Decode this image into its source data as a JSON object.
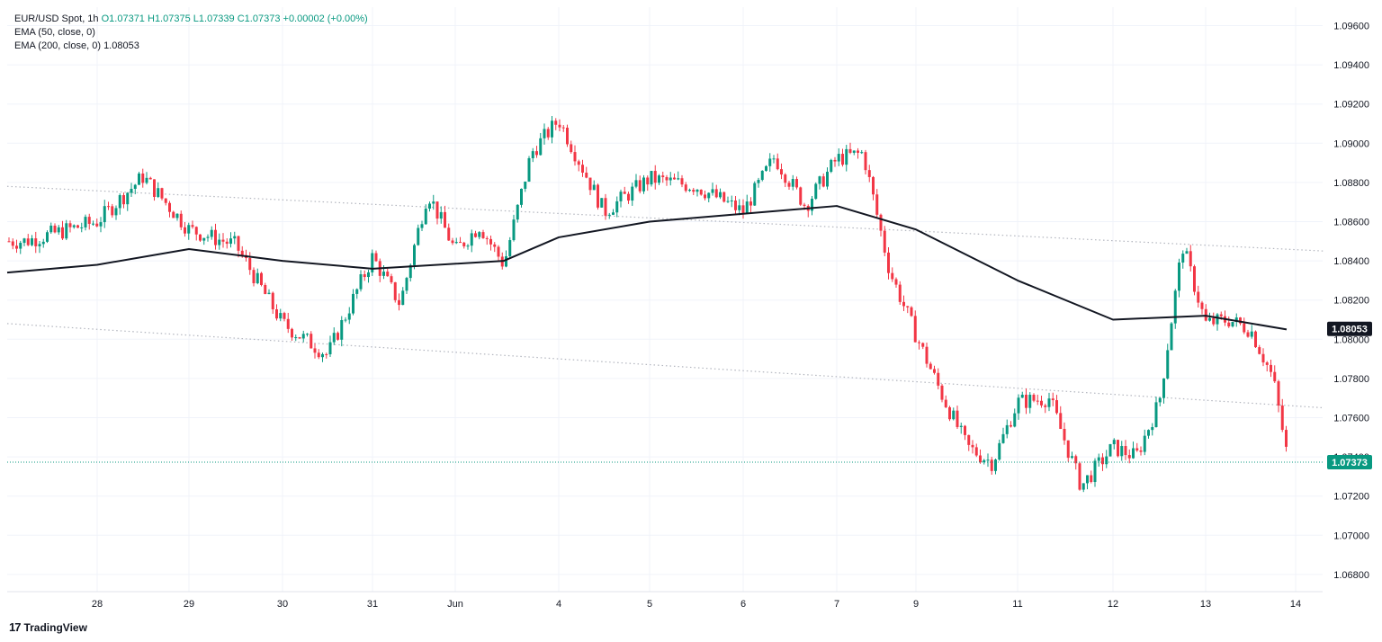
{
  "legend": {
    "symbol": "EUR/USD Spot, 1h",
    "open": "O1.07371",
    "high": "H1.07375",
    "low": "L1.07339",
    "close": "C1.07373",
    "change": "+0.00002 (+0.00%)",
    "ema50": "EMA (50, close, 0)",
    "ema200": "EMA (200, close, 0)",
    "ema200_value": "1.08053"
  },
  "branding": {
    "logo_text": "TradingView",
    "logo_mark": "17"
  },
  "colors": {
    "up": "#089981",
    "down": "#f23645",
    "ema": "#131722",
    "grid": "#f0f3fa",
    "trend": "#b2b5be"
  },
  "chart_data": {
    "type": "candlestick",
    "title": "EUR/USD Spot, 1h",
    "x_tick_labels": [
      "28",
      "29",
      "30",
      "31",
      "Jun",
      "4",
      "5",
      "6",
      "7",
      "9",
      "11",
      "12",
      "13",
      "14"
    ],
    "y_tick_labels": [
      "1.09600",
      "1.09400",
      "1.09200",
      "1.09000",
      "1.08800",
      "1.08600",
      "1.08400",
      "1.08200",
      "1.08000",
      "1.07800",
      "1.07600",
      "1.07400",
      "1.07200",
      "1.07000",
      "1.06800"
    ],
    "ylim": [
      1.067,
      1.097
    ],
    "grid": true,
    "last_price": "1.07373",
    "ema200_last": "1.08053",
    "price_path": [
      {
        "t": "27 May",
        "price": 1.085
      },
      {
        "t": "28 May",
        "price": 1.086
      },
      {
        "t": "28 May",
        "price": 1.0883
      },
      {
        "t": "29 May",
        "price": 1.0856
      },
      {
        "t": "29 May",
        "price": 1.0848
      },
      {
        "t": "30 May",
        "price": 1.0808
      },
      {
        "t": "30 May",
        "price": 1.0792
      },
      {
        "t": "31 May",
        "price": 1.0842
      },
      {
        "t": "31 May",
        "price": 1.0818
      },
      {
        "t": "31 May",
        "price": 1.0875
      },
      {
        "t": "Jun",
        "price": 1.0845
      },
      {
        "t": "Jun",
        "price": 1.0858
      },
      {
        "t": "3 Jun",
        "price": 1.0838
      },
      {
        "t": "3 Jun",
        "price": 1.0895
      },
      {
        "t": "4 Jun",
        "price": 1.0912
      },
      {
        "t": "4 Jun",
        "price": 1.0865
      },
      {
        "t": "5 Jun",
        "price": 1.0882
      },
      {
        "t": "5 Jun",
        "price": 1.0878
      },
      {
        "t": "6 Jun",
        "price": 1.0865
      },
      {
        "t": "6 Jun",
        "price": 1.0893
      },
      {
        "t": "6 Jun",
        "price": 1.0868
      },
      {
        "t": "7 Jun",
        "price": 1.0892
      },
      {
        "t": "7 Jun",
        "price": 1.0895
      },
      {
        "t": "7 Jun",
        "price": 1.0835
      },
      {
        "t": "9 Jun",
        "price": 1.0802
      },
      {
        "t": "9 Jun",
        "price": 1.0772
      },
      {
        "t": "10 Jun",
        "price": 1.0745
      },
      {
        "t": "10 Jun",
        "price": 1.0737
      },
      {
        "t": "11 Jun",
        "price": 1.0768
      },
      {
        "t": "11 Jun",
        "price": 1.077
      },
      {
        "t": "11 Jun",
        "price": 1.0725
      },
      {
        "t": "12 Jun",
        "price": 1.0745
      },
      {
        "t": "12 Jun",
        "price": 1.074
      },
      {
        "t": "12 Jun",
        "price": 1.0768
      },
      {
        "t": "12 Jun",
        "price": 1.0848
      },
      {
        "t": "13 Jun",
        "price": 1.0808
      },
      {
        "t": "13 Jun",
        "price": 1.081
      },
      {
        "t": "13 Jun",
        "price": 1.0805
      },
      {
        "t": "13 Jun",
        "price": 1.078
      },
      {
        "t": "14 Jun",
        "price": 1.0737
      }
    ],
    "ema200_path": [
      {
        "t": "27 May",
        "value": 1.0834
      },
      {
        "t": "28 May",
        "value": 1.0838
      },
      {
        "t": "29 May",
        "value": 1.0846
      },
      {
        "t": "30 May",
        "value": 1.084
      },
      {
        "t": "31 May",
        "value": 1.0836
      },
      {
        "t": "3 Jun",
        "value": 1.084
      },
      {
        "t": "4 Jun",
        "value": 1.0852
      },
      {
        "t": "5 Jun",
        "value": 1.086
      },
      {
        "t": "6 Jun",
        "value": 1.0864
      },
      {
        "t": "7 Jun",
        "value": 1.0868
      },
      {
        "t": "9 Jun",
        "value": 1.0856
      },
      {
        "t": "11 Jun",
        "value": 1.083
      },
      {
        "t": "12 Jun",
        "value": 1.081
      },
      {
        "t": "13 Jun",
        "value": 1.0812
      },
      {
        "t": "14 Jun",
        "value": 1.0805
      }
    ],
    "trendlines": [
      {
        "from": {
          "t": "27 May",
          "price": 1.0878
        },
        "to": {
          "t": "14 Jun",
          "price": 1.0845
        }
      },
      {
        "from": {
          "t": "27 May",
          "price": 1.0808
        },
        "to": {
          "t": "14 Jun",
          "price": 1.0765
        }
      }
    ]
  }
}
